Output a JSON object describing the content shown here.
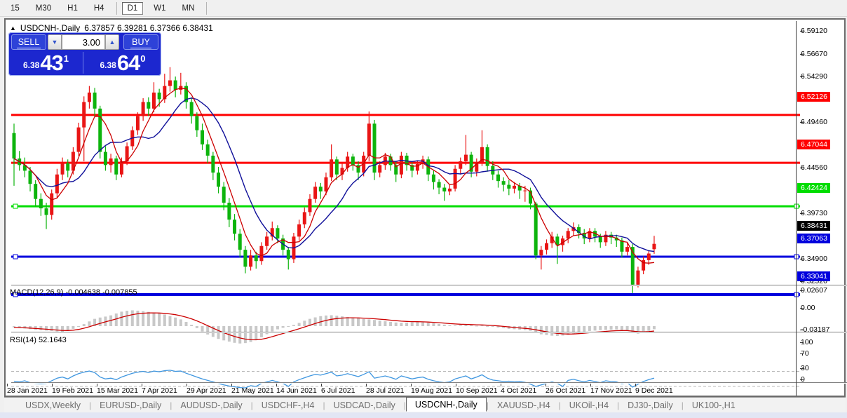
{
  "toolbar": {
    "items": [
      {
        "type": "button",
        "label": "15",
        "active": false
      },
      {
        "type": "button",
        "label": "M30",
        "active": false
      },
      {
        "type": "button",
        "label": "H1",
        "active": false
      },
      {
        "type": "button",
        "label": "H4",
        "active": false
      },
      {
        "type": "sep"
      },
      {
        "type": "button",
        "label": "D1",
        "active": true
      },
      {
        "type": "button",
        "label": "W1",
        "active": false
      },
      {
        "type": "button",
        "label": "MN",
        "active": false
      },
      {
        "type": "sep"
      }
    ]
  },
  "window_title": {
    "marker": "▲",
    "symbol": "USDCNH-,Daily",
    "ohlc": "6.37857 6.39281 6.37366 6.38431"
  },
  "trade_panel": {
    "sell_label": "SELL",
    "buy_label": "BUY",
    "volume": "3.00",
    "bid": {
      "small": "6.38",
      "big": "43",
      "sup": "1"
    },
    "ask": {
      "small": "6.38",
      "big": "64",
      "sup": "0"
    }
  },
  "tabs": {
    "active_index": 5,
    "items": [
      "USDX,Weekly",
      "EURUSD-,Daily",
      "AUDUSD-,Daily",
      "USDCHF-,H4",
      "USDCAD-,Daily",
      "USDCNH-,Daily",
      "XAUUSD-,H4",
      "UKOil-,H4",
      "DJ30-,Daily",
      "UK100-,H1"
    ]
  },
  "chart_data": {
    "type": "candlestick",
    "symbol": "USDCNH-",
    "timeframe": "Daily",
    "title_ohlc": {
      "open": "6.37857",
      "high": "6.39281",
      "low": "6.37366",
      "close": "6.38431"
    },
    "ylim": [
      6.3252,
      6.5912
    ],
    "up_color": "#e91515",
    "down_color": "#0db40d",
    "price_ticks": [
      {
        "label": "6.59120",
        "value": 6.5912
      },
      {
        "label": "6.56670",
        "value": 6.5667
      },
      {
        "label": "6.54290",
        "value": 6.5429
      },
      {
        "label": "6.49460",
        "value": 6.4946
      },
      {
        "label": "6.44560",
        "value": 6.4456
      },
      {
        "label": "6.39730",
        "value": 6.3973
      },
      {
        "label": "6.34900",
        "value": 6.349
      },
      {
        "label": "6.32520",
        "value": 6.3252
      }
    ],
    "price_badges": [
      {
        "label": "6.52126",
        "value": 6.52126,
        "color": "#ff0000"
      },
      {
        "label": "6.47044",
        "value": 6.47044,
        "color": "#ff0000"
      },
      {
        "label": "6.42424",
        "value": 6.42424,
        "color": "#00dd00"
      },
      {
        "label": "6.38431",
        "value": 6.38431,
        "color": "#000000"
      },
      {
        "label": "6.37063",
        "value": 6.37063,
        "color": "#0000dd"
      },
      {
        "label": "6.33041",
        "value": 6.33041,
        "color": "#0000dd"
      }
    ],
    "hlines": [
      {
        "value": 6.52126,
        "color": "#ff0000",
        "width": 3,
        "handles": false
      },
      {
        "value": 6.47044,
        "color": "#ff0000",
        "width": 3,
        "handles": false
      },
      {
        "value": 6.42424,
        "color": "#00dd00",
        "width": 3,
        "handles": true
      },
      {
        "value": 6.37063,
        "color": "#0000dd",
        "width": 3,
        "handles": true
      },
      {
        "value": 6.33041,
        "color": "#0000dd",
        "width": 4,
        "handles": true
      }
    ],
    "dates": [
      "28 Jan 2021",
      "19 Feb 2021",
      "15 Mar 2021",
      "7 Apr 2021",
      "29 Apr 2021",
      "21 May 2021",
      "14 Jun 2021",
      "6 Jul 2021",
      "28 Jul 2021",
      "19 Aug 2021",
      "10 Sep 2021",
      "4 Oct 2021",
      "26 Oct 2021",
      "17 Nov 2021",
      "9 Dec 2021"
    ],
    "ma_fast": {
      "period": 5,
      "color": "#cc0000"
    },
    "ma_slow": {
      "period": 11,
      "color": "#10109a"
    },
    "candles": [
      [
        6.502,
        6.512,
        6.446,
        6.475
      ],
      [
        6.475,
        6.483,
        6.462,
        6.468
      ],
      [
        6.468,
        6.476,
        6.455,
        6.462
      ],
      [
        6.462,
        6.466,
        6.44,
        6.448
      ],
      [
        6.448,
        6.452,
        6.424,
        6.432
      ],
      [
        6.432,
        6.438,
        6.414,
        6.422
      ],
      [
        6.422,
        6.428,
        6.4,
        6.415
      ],
      [
        6.415,
        6.442,
        6.41,
        6.438
      ],
      [
        6.438,
        6.464,
        6.433,
        6.458
      ],
      [
        6.458,
        6.476,
        6.452,
        6.47
      ],
      [
        6.47,
        6.474,
        6.455,
        6.462
      ],
      [
        6.462,
        6.487,
        6.458,
        6.482
      ],
      [
        6.482,
        6.513,
        6.478,
        6.508
      ],
      [
        6.508,
        6.541,
        6.472,
        6.535
      ],
      [
        6.535,
        6.552,
        6.528,
        6.545
      ],
      [
        6.545,
        6.55,
        6.52,
        6.528
      ],
      [
        6.528,
        6.531,
        6.475,
        6.482
      ],
      [
        6.482,
        6.488,
        6.462,
        6.468
      ],
      [
        6.468,
        6.48,
        6.46,
        6.475
      ],
      [
        6.475,
        6.478,
        6.452,
        6.458
      ],
      [
        6.458,
        6.476,
        6.455,
        6.472
      ],
      [
        6.472,
        6.492,
        6.468,
        6.488
      ],
      [
        6.488,
        6.509,
        6.484,
        6.505
      ],
      [
        6.505,
        6.524,
        6.5,
        6.52
      ],
      [
        6.52,
        6.539,
        6.515,
        6.535
      ],
      [
        6.535,
        6.54,
        6.52,
        6.528
      ],
      [
        6.528,
        6.556,
        6.524,
        6.545
      ],
      [
        6.545,
        6.549,
        6.53,
        6.538
      ],
      [
        6.538,
        6.565,
        6.534,
        6.552
      ],
      [
        6.552,
        6.572,
        6.546,
        6.558
      ],
      [
        6.558,
        6.562,
        6.54,
        6.548
      ],
      [
        6.548,
        6.566,
        6.543,
        6.552
      ],
      [
        6.552,
        6.556,
        6.528,
        6.535
      ],
      [
        6.535,
        6.54,
        6.512,
        6.52
      ],
      [
        6.52,
        6.524,
        6.498,
        6.505
      ],
      [
        6.505,
        6.512,
        6.484,
        6.49
      ],
      [
        6.49,
        6.495,
        6.47,
        6.478
      ],
      [
        6.478,
        6.482,
        6.452,
        6.46
      ],
      [
        6.46,
        6.466,
        6.438,
        6.445
      ],
      [
        6.445,
        6.45,
        6.42,
        6.428
      ],
      [
        6.428,
        6.433,
        6.402,
        6.41
      ],
      [
        6.41,
        6.416,
        6.388,
        6.395
      ],
      [
        6.395,
        6.4,
        6.37,
        6.378
      ],
      [
        6.378,
        6.382,
        6.353,
        6.36
      ],
      [
        6.36,
        6.378,
        6.356,
        6.372
      ],
      [
        6.372,
        6.376,
        6.358,
        6.366
      ],
      [
        6.366,
        6.386,
        6.362,
        6.382
      ],
      [
        6.382,
        6.397,
        6.378,
        6.392
      ],
      [
        6.392,
        6.408,
        6.388,
        6.401
      ],
      [
        6.401,
        6.404,
        6.385,
        6.39
      ],
      [
        6.39,
        6.394,
        6.372,
        6.378
      ],
      [
        6.378,
        6.381,
        6.357,
        6.368
      ],
      [
        6.368,
        6.396,
        6.364,
        6.392
      ],
      [
        6.392,
        6.41,
        6.388,
        6.405
      ],
      [
        6.405,
        6.423,
        6.401,
        6.418
      ],
      [
        6.418,
        6.437,
        6.414,
        6.432
      ],
      [
        6.432,
        6.45,
        6.428,
        6.445
      ],
      [
        6.445,
        6.449,
        6.432,
        6.44
      ],
      [
        6.44,
        6.46,
        6.436,
        6.455
      ],
      [
        6.455,
        6.49,
        6.451,
        6.474
      ],
      [
        6.474,
        6.477,
        6.452,
        6.458
      ],
      [
        6.458,
        6.47,
        6.452,
        6.465
      ],
      [
        6.465,
        6.482,
        6.461,
        6.477
      ],
      [
        6.477,
        6.48,
        6.462,
        6.468
      ],
      [
        6.468,
        6.472,
        6.452,
        6.46
      ],
      [
        6.46,
        6.482,
        6.456,
        6.478
      ],
      [
        6.478,
        6.525,
        6.472,
        6.512
      ],
      [
        6.512,
        6.516,
        6.452,
        6.46
      ],
      [
        6.46,
        6.472,
        6.455,
        6.468
      ],
      [
        6.468,
        6.481,
        6.463,
        6.477
      ],
      [
        6.477,
        6.48,
        6.462,
        6.468
      ],
      [
        6.468,
        6.472,
        6.45,
        6.458
      ],
      [
        6.458,
        6.482,
        6.454,
        6.478
      ],
      [
        6.478,
        6.481,
        6.462,
        6.468
      ],
      [
        6.468,
        6.471,
        6.455,
        6.462
      ],
      [
        6.462,
        6.473,
        6.458,
        6.469
      ],
      [
        6.469,
        6.478,
        6.464,
        6.474
      ],
      [
        6.474,
        6.477,
        6.451,
        6.458
      ],
      [
        6.458,
        6.462,
        6.442,
        6.45
      ],
      [
        6.45,
        6.453,
        6.437,
        6.444
      ],
      [
        6.444,
        6.448,
        6.43,
        6.44
      ],
      [
        6.44,
        6.447,
        6.436,
        6.443
      ],
      [
        6.443,
        6.468,
        6.44,
        6.464
      ],
      [
        6.464,
        6.476,
        6.458,
        6.472
      ],
      [
        6.472,
        6.5,
        6.468,
        6.479
      ],
      [
        6.479,
        6.482,
        6.455,
        6.461
      ],
      [
        6.461,
        6.475,
        6.456,
        6.471
      ],
      [
        6.471,
        6.505,
        6.467,
        6.487
      ],
      [
        6.487,
        6.49,
        6.461,
        6.467
      ],
      [
        6.467,
        6.472,
        6.452,
        6.458
      ],
      [
        6.458,
        6.462,
        6.444,
        6.451
      ],
      [
        6.451,
        6.455,
        6.44,
        6.447
      ],
      [
        6.447,
        6.452,
        6.436,
        6.443
      ],
      [
        6.443,
        6.45,
        6.438,
        6.446
      ],
      [
        6.446,
        6.449,
        6.432,
        6.441
      ],
      [
        6.441,
        6.446,
        6.429,
        6.441
      ],
      [
        6.441,
        6.444,
        6.421,
        6.427
      ],
      [
        6.427,
        6.429,
        6.368,
        6.372
      ],
      [
        6.372,
        6.382,
        6.357,
        6.378
      ],
      [
        6.378,
        6.389,
        6.373,
        6.385
      ],
      [
        6.385,
        6.397,
        6.38,
        6.392
      ],
      [
        6.392,
        6.395,
        6.363,
        6.383
      ],
      [
        6.383,
        6.393,
        6.376,
        6.39
      ],
      [
        6.39,
        6.401,
        6.385,
        6.398
      ],
      [
        6.398,
        6.407,
        6.393,
        6.402
      ],
      [
        6.402,
        6.405,
        6.39,
        6.396
      ],
      [
        6.396,
        6.4,
        6.384,
        6.39
      ],
      [
        6.39,
        6.401,
        6.386,
        6.398
      ],
      [
        6.398,
        6.401,
        6.386,
        6.392
      ],
      [
        6.392,
        6.395,
        6.38,
        6.386
      ],
      [
        6.386,
        6.398,
        6.382,
        6.394
      ],
      [
        6.394,
        6.397,
        6.384,
        6.391
      ],
      [
        6.391,
        6.394,
        6.381,
        6.388
      ],
      [
        6.388,
        6.391,
        6.37,
        6.376
      ],
      [
        6.376,
        6.385,
        6.372,
        6.381
      ],
      [
        6.381,
        6.384,
        6.332,
        6.341
      ],
      [
        6.341,
        6.36,
        6.338,
        6.356
      ],
      [
        6.356,
        6.371,
        6.352,
        6.367
      ],
      [
        6.367,
        6.377,
        6.362,
        6.374
      ],
      [
        6.3786,
        6.3928,
        6.3737,
        6.3843
      ]
    ],
    "macd": {
      "label": "MACD(12,26,9)",
      "value_main": "-0.004638",
      "value_signal": "-0.007855",
      "ticks": [
        {
          "label": "0.02607",
          "value": 0.02607
        },
        {
          "label": "0.00",
          "value": 0
        },
        {
          "label": "-0.03187",
          "value": -0.03187
        }
      ],
      "hist_color": "#c8c8c8",
      "signal_color": "#cc0000",
      "hist": [
        -0.002,
        -0.0028,
        -0.0036,
        -0.0045,
        -0.0055,
        -0.006,
        -0.0066,
        -0.0072,
        -0.008,
        -0.0088,
        -0.007,
        -0.004,
        -0.001,
        0.003,
        0.007,
        0.0108,
        0.0128,
        0.0142,
        0.016,
        0.0188,
        0.0215,
        0.0228,
        0.0235,
        0.023,
        0.0222,
        0.0212,
        0.02,
        0.0188,
        0.0172,
        0.015,
        0.0128,
        0.01,
        0.0062,
        0.002,
        -0.003,
        -0.008,
        -0.0125,
        -0.016,
        -0.019,
        -0.0212,
        -0.023,
        -0.0248,
        -0.0258,
        -0.0252,
        -0.0235,
        -0.0205,
        -0.0165,
        -0.012,
        -0.008,
        -0.0048,
        -0.0025,
        -0.0008,
        0.0018,
        0.0048,
        0.008,
        0.0108,
        0.013,
        0.0148,
        0.0158,
        0.0162,
        0.0155,
        0.0145,
        0.0136,
        0.0126,
        0.0116,
        0.0106,
        0.01,
        0.0092,
        0.0082,
        0.0072,
        0.0062,
        0.0054,
        0.005,
        0.0053,
        0.0058,
        0.006,
        0.0057,
        0.005,
        0.0042,
        0.0032,
        0.0022,
        0.0014,
        0.001,
        0.0014,
        0.002,
        0.0012,
        0.0006,
        0.001,
        0.0002,
        -0.0008,
        -0.002,
        -0.003,
        -0.004,
        -0.0046,
        -0.0052,
        -0.0058,
        -0.007,
        -0.01,
        -0.0122,
        -0.0132,
        -0.0142,
        -0.0146,
        -0.014,
        -0.013,
        -0.0112,
        -0.0094,
        -0.0082,
        -0.0072,
        -0.0066,
        -0.006,
        -0.0056,
        -0.0052,
        -0.005,
        -0.0058,
        -0.007,
        -0.01,
        -0.0112,
        -0.0092,
        -0.007,
        -0.0046
      ]
    },
    "rsi": {
      "label": "RSI(14)",
      "value": "52.1643",
      "ticks": [
        {
          "label": "100",
          "value": 100
        },
        {
          "label": "70",
          "value": 70
        },
        {
          "label": "30",
          "value": 30
        },
        {
          "label": "0",
          "value": 0
        }
      ],
      "levels": [
        70,
        30
      ],
      "color": "#3e96e0",
      "values": [
        44,
        42,
        45,
        40,
        38,
        37,
        38,
        45,
        52,
        55,
        50,
        58,
        64,
        68,
        71,
        67,
        55,
        50,
        52,
        48,
        55,
        60,
        65,
        68,
        70,
        67,
        71,
        69,
        72,
        73,
        70,
        71,
        65,
        60,
        55,
        50,
        46,
        42,
        38,
        34,
        31,
        29,
        27,
        26,
        32,
        30,
        38,
        42,
        46,
        42,
        38,
        30,
        42,
        48,
        53,
        58,
        62,
        60,
        64,
        68,
        58,
        60,
        64,
        60,
        56,
        62,
        69,
        52,
        55,
        58,
        54,
        49,
        58,
        54,
        50,
        53,
        55,
        49,
        45,
        42,
        40,
        42,
        50,
        54,
        58,
        50,
        55,
        61,
        52,
        47,
        45,
        43,
        44,
        42,
        43,
        41,
        36,
        30,
        34,
        38,
        42,
        38,
        30,
        46,
        49,
        45,
        42,
        46,
        43,
        40,
        45,
        43,
        42,
        37,
        40,
        28,
        36,
        43,
        48,
        52.16
      ]
    }
  }
}
